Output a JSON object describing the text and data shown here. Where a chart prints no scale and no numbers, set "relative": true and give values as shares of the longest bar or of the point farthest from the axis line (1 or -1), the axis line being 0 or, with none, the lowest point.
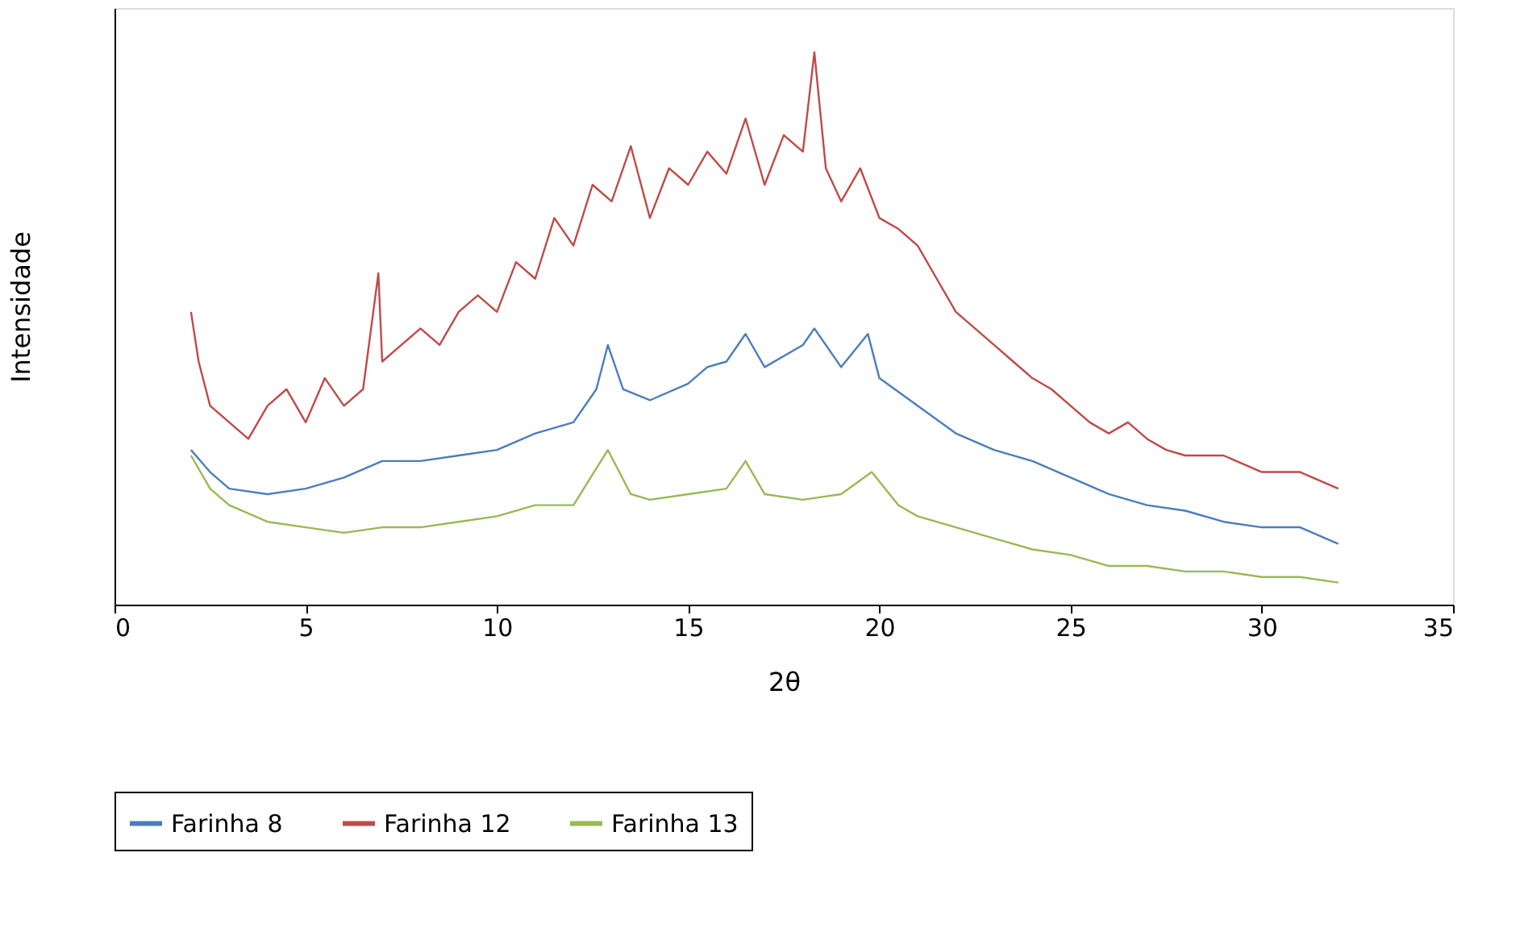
{
  "chart_data": {
    "type": "line",
    "xlabel": "2θ",
    "ylabel": "Intensidade",
    "relative": true,
    "xlim": [
      0,
      35
    ],
    "xticks": [
      0,
      5,
      10,
      15,
      20,
      25,
      30,
      35
    ],
    "grid": false,
    "legend": "bottom",
    "marker": "none",
    "line_style": "solid",
    "series": [
      {
        "name": "Farinha 8",
        "color": "#4a7ebb",
        "x": [
          2,
          2.5,
          3,
          4,
          5,
          6,
          7,
          8,
          9,
          10,
          11,
          12,
          12.6,
          12.9,
          13.3,
          14,
          15,
          15.5,
          16,
          16.5,
          17,
          18,
          18.3,
          19,
          19.7,
          20,
          21,
          22,
          23,
          24,
          25,
          26,
          27,
          28,
          29,
          30,
          31,
          32
        ],
        "values": [
          0.28,
          0.24,
          0.21,
          0.2,
          0.21,
          0.23,
          0.26,
          0.26,
          0.27,
          0.28,
          0.31,
          0.33,
          0.39,
          0.47,
          0.39,
          0.37,
          0.4,
          0.43,
          0.44,
          0.49,
          0.43,
          0.47,
          0.5,
          0.43,
          0.49,
          0.41,
          0.36,
          0.31,
          0.28,
          0.26,
          0.23,
          0.2,
          0.18,
          0.17,
          0.15,
          0.14,
          0.14,
          0.11
        ]
      },
      {
        "name": "Farinha 12",
        "color": "#be4b48",
        "x": [
          2,
          2.2,
          2.5,
          3,
          3.5,
          4,
          4.5,
          5,
          5.5,
          6,
          6.5,
          6.9,
          7,
          7.5,
          8,
          8.5,
          9,
          9.5,
          10,
          10.5,
          11,
          11.5,
          12,
          12.5,
          13,
          13.5,
          14,
          14.5,
          15,
          15.5,
          16,
          16.5,
          17,
          17.5,
          18,
          18.3,
          18.6,
          19,
          19.5,
          20,
          20.5,
          21,
          21.5,
          22,
          22.5,
          23,
          23.5,
          24,
          24.5,
          25,
          25.5,
          26,
          26.5,
          27,
          27.5,
          28,
          29,
          30,
          31,
          32
        ],
        "values": [
          0.53,
          0.44,
          0.36,
          0.33,
          0.3,
          0.36,
          0.39,
          0.33,
          0.41,
          0.36,
          0.39,
          0.6,
          0.44,
          0.47,
          0.5,
          0.47,
          0.53,
          0.56,
          0.53,
          0.62,
          0.59,
          0.7,
          0.65,
          0.76,
          0.73,
          0.83,
          0.7,
          0.79,
          0.76,
          0.82,
          0.78,
          0.88,
          0.76,
          0.85,
          0.82,
          1.0,
          0.79,
          0.73,
          0.79,
          0.7,
          0.68,
          0.65,
          0.59,
          0.53,
          0.5,
          0.47,
          0.44,
          0.41,
          0.39,
          0.36,
          0.33,
          0.31,
          0.33,
          0.3,
          0.28,
          0.27,
          0.27,
          0.24,
          0.24,
          0.21
        ]
      },
      {
        "name": "Farinha 13",
        "color": "#98b954",
        "x": [
          2,
          2.5,
          3,
          4,
          5,
          6,
          7,
          8,
          9,
          10,
          11,
          12,
          12.9,
          13.5,
          14,
          15,
          16,
          16.5,
          17,
          18,
          19,
          19.8,
          20.5,
          21,
          22,
          23,
          24,
          25,
          26,
          27,
          28,
          29,
          30,
          31,
          32
        ],
        "values": [
          0.27,
          0.21,
          0.18,
          0.15,
          0.14,
          0.13,
          0.14,
          0.14,
          0.15,
          0.16,
          0.18,
          0.18,
          0.28,
          0.2,
          0.19,
          0.2,
          0.21,
          0.26,
          0.2,
          0.19,
          0.2,
          0.24,
          0.18,
          0.16,
          0.14,
          0.12,
          0.1,
          0.09,
          0.07,
          0.07,
          0.06,
          0.06,
          0.05,
          0.05,
          0.04
        ]
      }
    ]
  }
}
